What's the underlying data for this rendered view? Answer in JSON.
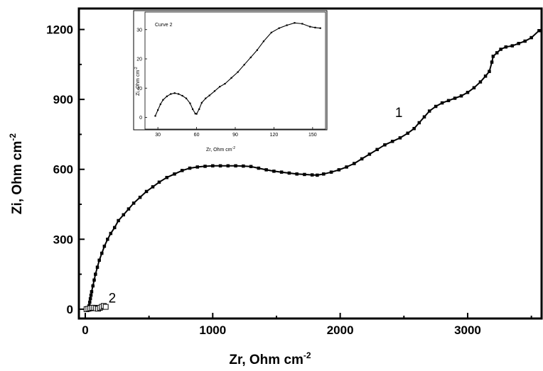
{
  "chart_data": [
    {
      "type": "line",
      "xlabel": "Zr, Ohm cm",
      "xlabel_sup": "-2",
      "ylabel": "Zi, Ohm cm",
      "ylabel_sup": "-2",
      "xlim": [
        -50,
        3580
      ],
      "ylim": [
        -40,
        1290
      ],
      "xticks": [
        0,
        1000,
        2000,
        3000
      ],
      "xtick_labels": [
        "0",
        "1000",
        "2000",
        "3000"
      ],
      "yticks": [
        0,
        300,
        600,
        900,
        1200
      ],
      "ytick_labels": [
        "0",
        "300",
        "600",
        "900",
        "1200"
      ],
      "grid": false,
      "series": [
        {
          "name": "1",
          "marker": "filled-square",
          "x": [
            20,
            25,
            30,
            35,
            40,
            45,
            50,
            60,
            70,
            80,
            95,
            110,
            130,
            150,
            175,
            200,
            230,
            260,
            300,
            340,
            380,
            430,
            480,
            530,
            580,
            640,
            700,
            760,
            820,
            880,
            940,
            1000,
            1060,
            1120,
            1180,
            1240,
            1300,
            1360,
            1420,
            1480,
            1540,
            1600,
            1660,
            1720,
            1780,
            1820,
            1870,
            1930,
            1990,
            2050,
            2110,
            2170,
            2230,
            2290,
            2350,
            2410,
            2470,
            2530,
            2580,
            2620,
            2660,
            2700,
            2750,
            2800,
            2850,
            2900,
            2950,
            3000,
            3050,
            3100,
            3140,
            3170,
            3190,
            3200,
            3230,
            3260,
            3300,
            3350,
            3400,
            3450,
            3500,
            3560
          ],
          "y": [
            0,
            5,
            15,
            30,
            45,
            60,
            75,
            100,
            125,
            150,
            180,
            210,
            240,
            270,
            300,
            325,
            350,
            380,
            405,
            430,
            455,
            480,
            505,
            525,
            545,
            565,
            580,
            595,
            605,
            610,
            613,
            615,
            615,
            615,
            615,
            614,
            612,
            605,
            598,
            592,
            588,
            584,
            580,
            578,
            576,
            575,
            580,
            588,
            598,
            610,
            625,
            645,
            665,
            685,
            705,
            720,
            735,
            755,
            775,
            800,
            825,
            850,
            870,
            885,
            895,
            905,
            915,
            930,
            950,
            975,
            1000,
            1020,
            1060,
            1085,
            1100,
            1115,
            1125,
            1130,
            1140,
            1150,
            1165,
            1195
          ]
        },
        {
          "name": "2",
          "marker": "open-square",
          "x": [
            10,
            25,
            40,
            55,
            70,
            85,
            100,
            115,
            130,
            145,
            160
          ],
          "y": [
            0,
            2,
            4,
            6,
            6,
            4,
            2,
            6,
            10,
            14,
            10
          ]
        }
      ]
    },
    {
      "type": "line",
      "title": "Curve 2",
      "xlabel": "Zr, Ohm cm",
      "xlabel_sup": "-2",
      "ylabel": "Zi, Ohm cm",
      "ylabel_sup": "-2",
      "xlim": [
        20,
        160
      ],
      "ylim": [
        -4,
        36
      ],
      "xticks": [
        30,
        60,
        90,
        120,
        150
      ],
      "xtick_labels": [
        "30",
        "60",
        "90",
        "120",
        "150"
      ],
      "yticks": [
        0,
        10,
        20,
        30
      ],
      "ytick_labels": [
        "0",
        "10",
        "20",
        "30"
      ],
      "grid": false,
      "series": [
        {
          "name": "",
          "marker": "small-filled-square",
          "x": [
            28,
            30,
            32,
            34,
            37,
            40,
            43,
            46,
            49,
            52,
            55,
            57,
            59,
            60,
            62,
            64,
            67,
            70,
            74,
            78,
            82,
            87,
            92,
            97,
            102,
            107,
            112,
            118,
            124,
            130,
            136,
            142,
            148,
            152,
            156
          ],
          "y": [
            0.5,
            2.5,
            4.5,
            6.0,
            7.2,
            8.0,
            8.3,
            8.0,
            7.4,
            6.5,
            4.8,
            2.8,
            1.3,
            1.2,
            2.8,
            5.0,
            6.5,
            7.5,
            9.0,
            10.5,
            11.5,
            13.5,
            15.5,
            18.0,
            20.5,
            23.0,
            26.0,
            29.0,
            30.5,
            31.5,
            32.3,
            32.0,
            31.0,
            30.7,
            30.5
          ]
        }
      ]
    }
  ]
}
